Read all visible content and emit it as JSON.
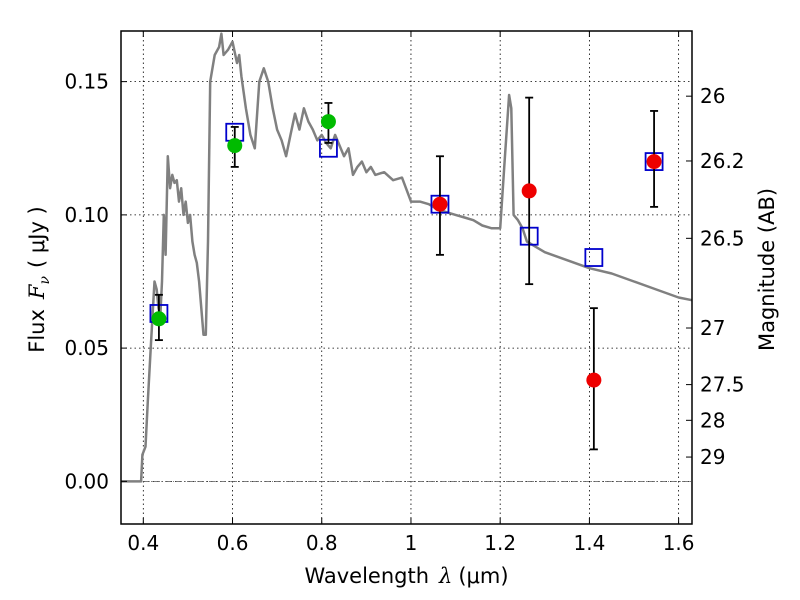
{
  "chart_data": {
    "type": "scatter",
    "title": "",
    "xlabel": {
      "text": "Wavelength",
      "symbol": "λ",
      "unit": "(μm)"
    },
    "ylabel": {
      "text": "Flux",
      "symbol": "F",
      "subscript": "ν",
      "unit": "( μJy )"
    },
    "y2label": "Magnitude (AB)",
    "xlim": [
      0.35,
      1.63
    ],
    "ylim": [
      -0.016,
      0.169
    ],
    "grid": true,
    "x_ticks": [
      0.4,
      0.6,
      0.8,
      1.0,
      1.2,
      1.4,
      1.6
    ],
    "x_tick_labels": [
      "0.4",
      "0.6",
      "0.8",
      "1",
      "1.2",
      "1.4",
      "1.6"
    ],
    "y_ticks": [
      0.0,
      0.05,
      0.1,
      0.15
    ],
    "y_tick_labels": [
      "0.00",
      "0.05",
      "0.10",
      "0.15"
    ],
    "y2_tick_labels": [
      "26",
      "26.2",
      "26.5",
      "27",
      "27.5",
      "28",
      "29"
    ],
    "zero_line": 0.0,
    "colors": {
      "model": "#808080",
      "boxes": "#0000cc",
      "green": "#00bb00",
      "red": "#ee0000",
      "errorbar": "#000000"
    },
    "series": [
      {
        "role": "model",
        "marker": "line",
        "x": [
          0.35,
          0.395,
          0.398,
          0.405,
          0.41,
          0.415,
          0.42,
          0.425,
          0.43,
          0.434,
          0.438,
          0.442,
          0.446,
          0.45,
          0.455,
          0.46,
          0.465,
          0.47,
          0.475,
          0.48,
          0.485,
          0.49,
          0.495,
          0.5,
          0.505,
          0.51,
          0.515,
          0.52,
          0.525,
          0.53,
          0.535,
          0.54,
          0.545,
          0.55,
          0.56,
          0.57,
          0.575,
          0.58,
          0.59,
          0.6,
          0.61,
          0.615,
          0.62,
          0.63,
          0.64,
          0.65,
          0.66,
          0.67,
          0.68,
          0.69,
          0.7,
          0.71,
          0.72,
          0.73,
          0.74,
          0.75,
          0.76,
          0.77,
          0.78,
          0.79,
          0.8,
          0.81,
          0.82,
          0.83,
          0.84,
          0.85,
          0.86,
          0.87,
          0.88,
          0.89,
          0.9,
          0.91,
          0.92,
          0.94,
          0.96,
          0.98,
          1.0,
          1.02,
          1.04,
          1.06,
          1.08,
          1.1,
          1.12,
          1.14,
          1.16,
          1.18,
          1.2,
          1.21,
          1.22,
          1.225,
          1.23,
          1.24,
          1.25,
          1.26,
          1.28,
          1.3,
          1.35,
          1.4,
          1.45,
          1.5,
          1.55,
          1.6,
          1.63
        ],
        "y": [
          0.0,
          0.0,
          0.01,
          0.013,
          0.03,
          0.045,
          0.06,
          0.075,
          0.072,
          0.065,
          0.062,
          0.075,
          0.1,
          0.085,
          0.122,
          0.11,
          0.115,
          0.112,
          0.113,
          0.105,
          0.11,
          0.1,
          0.105,
          0.097,
          0.1,
          0.09,
          0.085,
          0.082,
          0.075,
          0.065,
          0.055,
          0.055,
          0.09,
          0.15,
          0.16,
          0.163,
          0.168,
          0.16,
          0.162,
          0.165,
          0.157,
          0.16,
          0.152,
          0.14,
          0.13,
          0.125,
          0.15,
          0.155,
          0.15,
          0.14,
          0.132,
          0.128,
          0.122,
          0.13,
          0.138,
          0.132,
          0.14,
          0.135,
          0.132,
          0.128,
          0.13,
          0.127,
          0.125,
          0.13,
          0.126,
          0.122,
          0.125,
          0.115,
          0.118,
          0.12,
          0.116,
          0.118,
          0.115,
          0.116,
          0.113,
          0.114,
          0.105,
          0.105,
          0.104,
          0.102,
          0.101,
          0.1,
          0.099,
          0.098,
          0.096,
          0.095,
          0.095,
          0.12,
          0.145,
          0.14,
          0.1,
          0.098,
          0.095,
          0.09,
          0.088,
          0.086,
          0.083,
          0.08,
          0.078,
          0.075,
          0.072,
          0.069,
          0.068
        ]
      },
      {
        "role": "model-photometry",
        "marker": "open-square",
        "points": [
          {
            "x": 0.435,
            "y": 0.063
          },
          {
            "x": 0.605,
            "y": 0.131
          },
          {
            "x": 0.815,
            "y": 0.125
          },
          {
            "x": 1.065,
            "y": 0.104
          },
          {
            "x": 1.265,
            "y": 0.092
          },
          {
            "x": 1.41,
            "y": 0.084
          },
          {
            "x": 1.545,
            "y": 0.12
          }
        ]
      },
      {
        "role": "observed-optical",
        "marker": "filled-circle",
        "color": "green",
        "points": [
          {
            "x": 0.435,
            "y": 0.061,
            "ylo": 0.053,
            "yhi": 0.07
          },
          {
            "x": 0.605,
            "y": 0.126,
            "ylo": 0.118,
            "yhi": 0.133
          },
          {
            "x": 0.815,
            "y": 0.135,
            "ylo": 0.127,
            "yhi": 0.142
          }
        ]
      },
      {
        "role": "observed-infrared",
        "marker": "filled-circle",
        "color": "red",
        "points": [
          {
            "x": 1.065,
            "y": 0.104,
            "ylo": 0.085,
            "yhi": 0.122
          },
          {
            "x": 1.265,
            "y": 0.109,
            "ylo": 0.074,
            "yhi": 0.144
          },
          {
            "x": 1.41,
            "y": 0.038,
            "ylo": 0.012,
            "yhi": 0.065
          },
          {
            "x": 1.545,
            "y": 0.12,
            "ylo": 0.103,
            "yhi": 0.139
          }
        ]
      }
    ]
  }
}
